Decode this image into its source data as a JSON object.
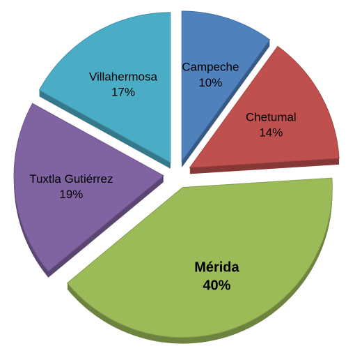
{
  "chart_data": {
    "type": "pie",
    "categories": [
      "Campeche",
      "Chetumal",
      "Mérida",
      "Tuxtla Gutiérrez",
      "Villahermosa"
    ],
    "values": [
      10,
      14,
      40,
      19,
      17
    ],
    "value_labels": [
      "10%",
      "14%",
      "40%",
      "19%",
      "17%"
    ],
    "colors": [
      "#4f81bd",
      "#c0504d",
      "#9bbb59",
      "#8064a2",
      "#4bacc6"
    ]
  }
}
